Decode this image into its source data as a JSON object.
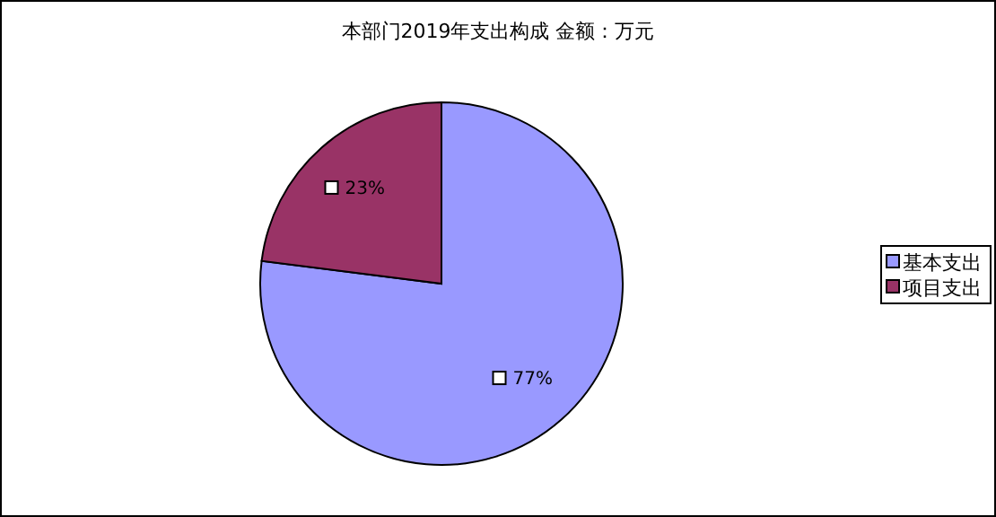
{
  "chart_data": {
    "type": "pie",
    "title": "本部门2019年支出构成 金额：万元",
    "categories": [
      "基本支出",
      "项目支出"
    ],
    "values": [
      77,
      23
    ],
    "colors": [
      "#9999ff",
      "#993366"
    ],
    "value_labels": [
      "77%",
      "23%"
    ],
    "legend": "right"
  }
}
